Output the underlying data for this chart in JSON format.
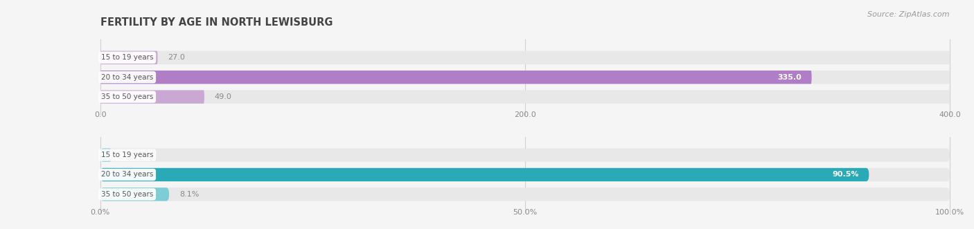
{
  "title": "FERTILITY BY AGE IN NORTH LEWISBURG",
  "source": "Source: ZipAtlas.com",
  "top_chart": {
    "categories": [
      "15 to 19 years",
      "20 to 34 years",
      "35 to 50 years"
    ],
    "values": [
      27.0,
      335.0,
      49.0
    ],
    "xlim": [
      0,
      400
    ],
    "xticks": [
      0.0,
      200.0,
      400.0
    ],
    "xtick_labels": [
      "0.0",
      "200.0",
      "400.0"
    ],
    "bar_color_light": "#c9a8d4",
    "bar_color_dark": "#b07ec6",
    "bar_bg_color": "#e8e8e8"
  },
  "bottom_chart": {
    "categories": [
      "15 to 19 years",
      "20 to 34 years",
      "35 to 50 years"
    ],
    "values": [
      1.4,
      90.5,
      8.1
    ],
    "xlim": [
      0,
      100
    ],
    "xticks": [
      0.0,
      50.0,
      100.0
    ],
    "xtick_labels": [
      "0.0%",
      "50.0%",
      "100.0%"
    ],
    "bar_color_light": "#7dcdd6",
    "bar_color_dark": "#2aaab7",
    "bar_bg_color": "#e8e8e8"
  },
  "label_text_color": "#555555",
  "bg_color": "#f5f5f5",
  "title_color": "#444444",
  "source_color": "#999999",
  "bar_height": 0.68,
  "outside_label_color": "#888888",
  "inside_label_color": "#ffffff",
  "grid_color": "#d0d0d0"
}
